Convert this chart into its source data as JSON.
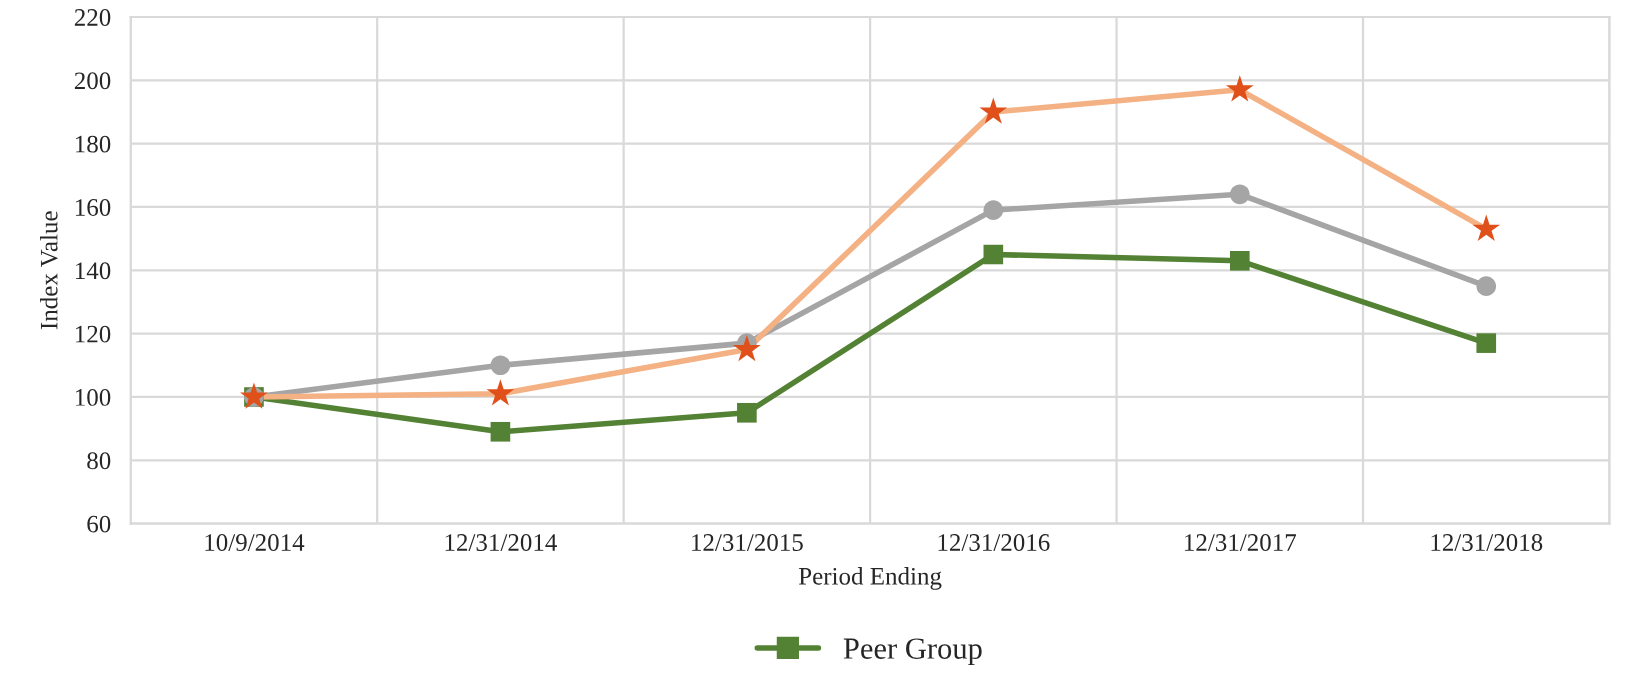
{
  "chart_data": {
    "type": "line",
    "xlabel": "Period Ending",
    "ylabel": "Index Value",
    "categories": [
      "10/9/2014",
      "12/31/2014",
      "12/31/2015",
      "12/31/2016",
      "12/31/2017",
      "12/31/2018"
    ],
    "series": [
      {
        "name": "Peer Group",
        "color": "#548235",
        "marker": "square",
        "values": [
          100,
          89,
          95,
          145,
          143,
          117
        ]
      },
      {
        "color": "#a5a5a5",
        "marker": "circle",
        "values": [
          100,
          110,
          117,
          159,
          164,
          135
        ]
      },
      {
        "color": "#f4b183",
        "colors": [
          "#e0501b",
          "#e0501b",
          "#e0501b",
          "#e0501b",
          "#e0501b",
          "#e0501b"
        ],
        "marker": "star",
        "values": [
          100,
          101,
          115,
          190,
          197,
          153
        ]
      }
    ],
    "ylim": [
      60,
      220
    ],
    "yticks": [
      60,
      80,
      100,
      120,
      140,
      160,
      180,
      200,
      220
    ],
    "grid": true,
    "legend": "bottom"
  }
}
